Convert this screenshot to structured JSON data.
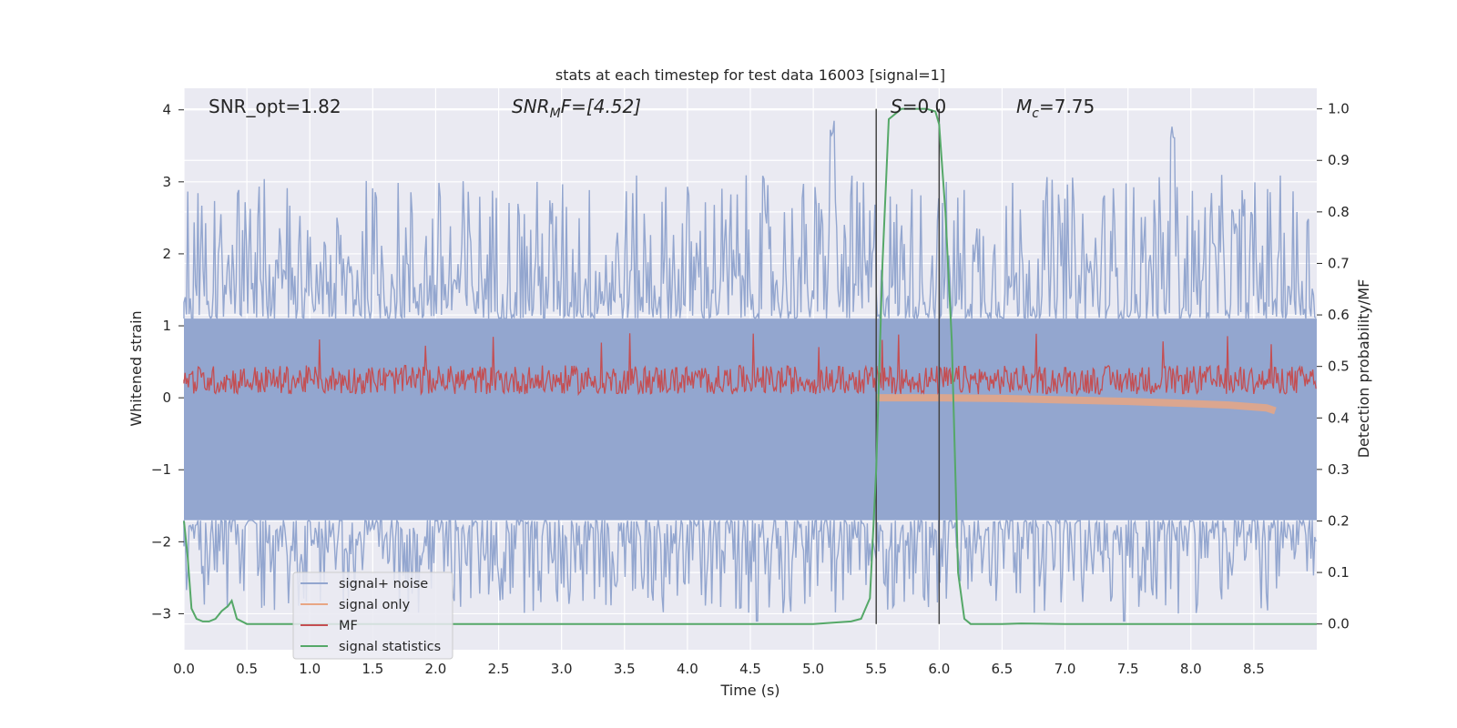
{
  "chart_data": {
    "type": "line",
    "title": "stats at each timestep for test data 16003 [signal=1]",
    "xlabel": "Time (s)",
    "ylabel_left": "Whitened strain",
    "ylabel_right": "Detection probability/MF",
    "xlim": [
      0.0,
      9.0
    ],
    "ylim_left": [
      -3.5,
      4.3
    ],
    "ylim_right": [
      -0.05,
      1.04
    ],
    "x_ticks": [
      "0.0",
      "0.5",
      "1.0",
      "1.5",
      "2.0",
      "2.5",
      "3.0",
      "3.5",
      "4.0",
      "4.5",
      "5.0",
      "5.5",
      "6.0",
      "6.5",
      "7.0",
      "7.5",
      "8.0",
      "8.5"
    ],
    "y_ticks_left": [
      "−3",
      "−2",
      "−1",
      "0",
      "1",
      "2",
      "3",
      "4"
    ],
    "y_ticks_right": [
      "0.0",
      "0.1",
      "0.2",
      "0.3",
      "0.4",
      "0.5",
      "0.6",
      "0.7",
      "0.8",
      "0.9",
      "1.0"
    ],
    "grid": true,
    "legend_position": "lower-left",
    "annotations": {
      "snr_opt": "SNR_opt=1.82",
      "snr_mf_main": "SNR",
      "snr_mf_sub": "M",
      "snr_mf_rest": "F=[4.52]",
      "s_label": "S",
      "s_value": "=0.0",
      "mc_main": "M",
      "mc_sub": "c",
      "mc_value": "=7.75"
    },
    "vertical_lines_x": [
      5.5,
      6.0
    ],
    "series": [
      {
        "name": "signal+ noise",
        "color": "#93a6cf",
        "axis": "left",
        "envelope": {
          "baseline_upper": 1.1,
          "baseline_lower": -1.7,
          "peak_upper": 4.0,
          "peak_lower": -3.1
        }
      },
      {
        "name": "signal only",
        "color": "#e8a684",
        "axis": "left",
        "x": [
          5.5,
          6.0,
          6.5,
          7.0,
          7.5,
          8.0,
          8.3,
          8.6,
          8.67
        ],
        "y": [
          0.0,
          0.0,
          -0.01,
          -0.03,
          -0.05,
          -0.08,
          -0.1,
          -0.14,
          -0.18
        ]
      },
      {
        "name": "MF",
        "color": "#c44e52",
        "axis": "left",
        "envelope": {
          "baseline_lower": 0.05,
          "baseline_upper": 0.45,
          "peak_upper": 0.9
        }
      },
      {
        "name": "signal statistics",
        "color": "#55a868",
        "axis": "right",
        "x": [
          0.0,
          0.03,
          0.06,
          0.1,
          0.15,
          0.2,
          0.25,
          0.3,
          0.35,
          0.38,
          0.42,
          0.5,
          1.0,
          2.0,
          3.0,
          4.0,
          5.0,
          5.3,
          5.38,
          5.45,
          5.5,
          5.55,
          5.6,
          5.7,
          5.8,
          5.9,
          5.97,
          6.0,
          6.05,
          6.1,
          6.15,
          6.2,
          6.25,
          6.3,
          6.5,
          6.65,
          7.0,
          8.0,
          9.0
        ],
        "y": [
          0.2,
          0.13,
          0.03,
          0.01,
          0.005,
          0.005,
          0.01,
          0.025,
          0.035,
          0.045,
          0.01,
          0.0,
          0.0,
          0.0,
          0.0,
          0.0,
          0.0,
          0.005,
          0.01,
          0.05,
          0.3,
          0.7,
          0.98,
          1.0,
          1.0,
          1.0,
          0.995,
          0.97,
          0.8,
          0.55,
          0.1,
          0.01,
          0.0,
          0.0,
          0.0,
          0.001,
          0.0,
          0.0,
          0.0
        ]
      }
    ]
  }
}
